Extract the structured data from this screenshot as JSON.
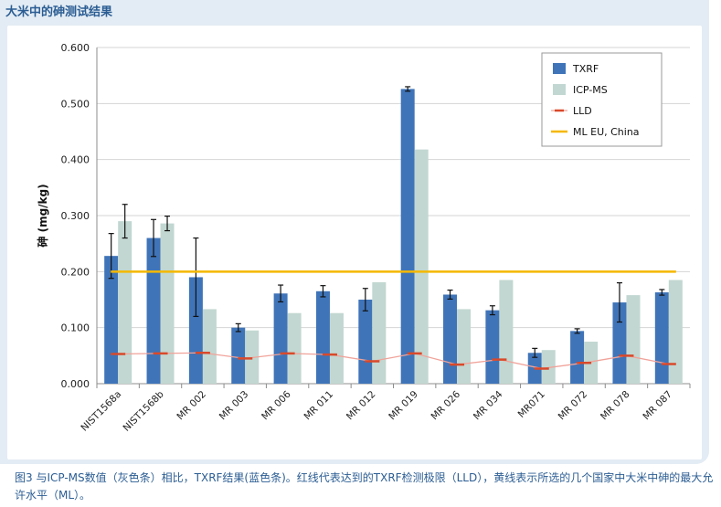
{
  "header": {
    "title": "大米中的砷测试结果"
  },
  "caption": "图3 与ICP-MS数值（灰色条）相比，TXRF结果(蓝色条)。红线代表达到的TXRF检测极限（LLD），黄线表示所选的几个国家中大米中砷的最大允许水平（ML）。",
  "chart_data": {
    "type": "bar",
    "title": "",
    "xlabel": "",
    "ylabel": "砷 (mg/kg)",
    "ylim": [
      0,
      0.6
    ],
    "yticks": [
      "0.000",
      "0.100",
      "0.200",
      "0.300",
      "0.400",
      "0.500",
      "0.600"
    ],
    "grid": true,
    "legend_position": "top-right",
    "categories": [
      "NIST1568a",
      "NIST1568b",
      "MR 002",
      "MR 003",
      "MR 006",
      "MR 011",
      "MR 012",
      "MR 019",
      "MR 026",
      "MR 034",
      "MR071",
      "MR 072",
      "MR 078",
      "MR 087"
    ],
    "series": [
      {
        "name": "TXRF",
        "color": "#3f74b8",
        "values": [
          0.228,
          0.26,
          0.19,
          0.1,
          0.161,
          0.165,
          0.15,
          0.526,
          0.159,
          0.131,
          0.055,
          0.094,
          0.145,
          0.163
        ],
        "error": [
          0.04,
          0.033,
          0.07,
          0.007,
          0.015,
          0.01,
          0.02,
          0.004,
          0.008,
          0.008,
          0.008,
          0.004,
          0.035,
          0.005
        ]
      },
      {
        "name": "ICP-MS",
        "color": "#c2d7d1",
        "values": [
          0.29,
          0.286,
          0.133,
          0.095,
          0.126,
          0.126,
          0.181,
          0.418,
          0.133,
          0.185,
          0.06,
          0.075,
          0.158,
          0.185
        ],
        "error": [
          0.03,
          0.013,
          null,
          null,
          null,
          null,
          null,
          null,
          null,
          null,
          null,
          null,
          null,
          null
        ]
      },
      {
        "name": "LLD",
        "color": "#d9492a",
        "line_color": "#f0a39a",
        "values": [
          0.053,
          0.054,
          0.055,
          0.045,
          0.054,
          0.052,
          0.04,
          0.054,
          0.034,
          0.043,
          0.027,
          0.037,
          0.05,
          0.035
        ]
      },
      {
        "name": "ML EU, China",
        "color": "#f5b800",
        "value": 0.2
      }
    ]
  }
}
